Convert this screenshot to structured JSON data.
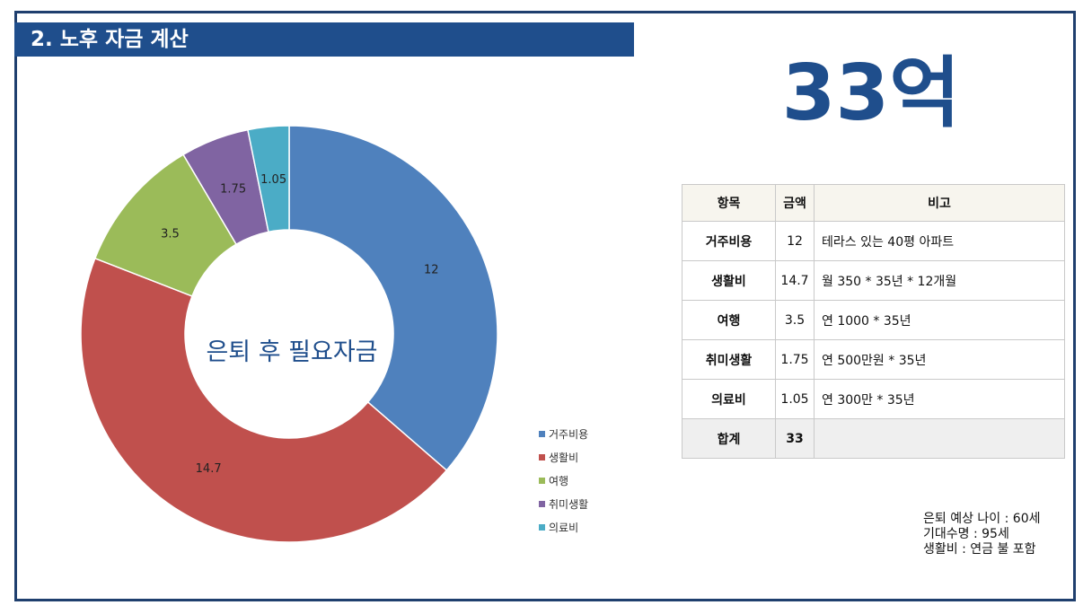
{
  "header": {
    "title": "2. 노후 자금 계산"
  },
  "total_display": "33억",
  "chart_data": {
    "type": "pie",
    "donut": true,
    "center_label": "은퇴 후 필요자금",
    "legend_position": "right-bottom",
    "categories": [
      "거주비용",
      "생활비",
      "여행",
      "취미생활",
      "의료비"
    ],
    "values": [
      12,
      14.7,
      3.5,
      1.75,
      1.05
    ],
    "data_labels": [
      "12",
      "14.7",
      "3.5",
      "1.75",
      "1.05"
    ],
    "colors": [
      "#4f81bd",
      "#c0504d",
      "#9bbb59",
      "#8064a2",
      "#4bacc6"
    ]
  },
  "table": {
    "headers": [
      "항목",
      "금액",
      "비고"
    ],
    "rows": [
      {
        "item": "거주비용",
        "amount": "12",
        "note": "테라스 있는 40평 아파트"
      },
      {
        "item": "생활비",
        "amount": "14.7",
        "note": "월 350 * 35년 * 12개월"
      },
      {
        "item": "여행",
        "amount": "3.5",
        "note": "연 1000 * 35년"
      },
      {
        "item": "취미생활",
        "amount": "1.75",
        "note": "연 500만원 * 35년"
      },
      {
        "item": "의료비",
        "amount": "1.05",
        "note": "연 300만 * 35년"
      }
    ],
    "total": {
      "item": "합계",
      "amount": "33",
      "note": ""
    }
  },
  "notes": [
    "은퇴 예상 나이 : 60세",
    "기대수명 : 95세",
    "생활비 : 연금 불 포함"
  ]
}
